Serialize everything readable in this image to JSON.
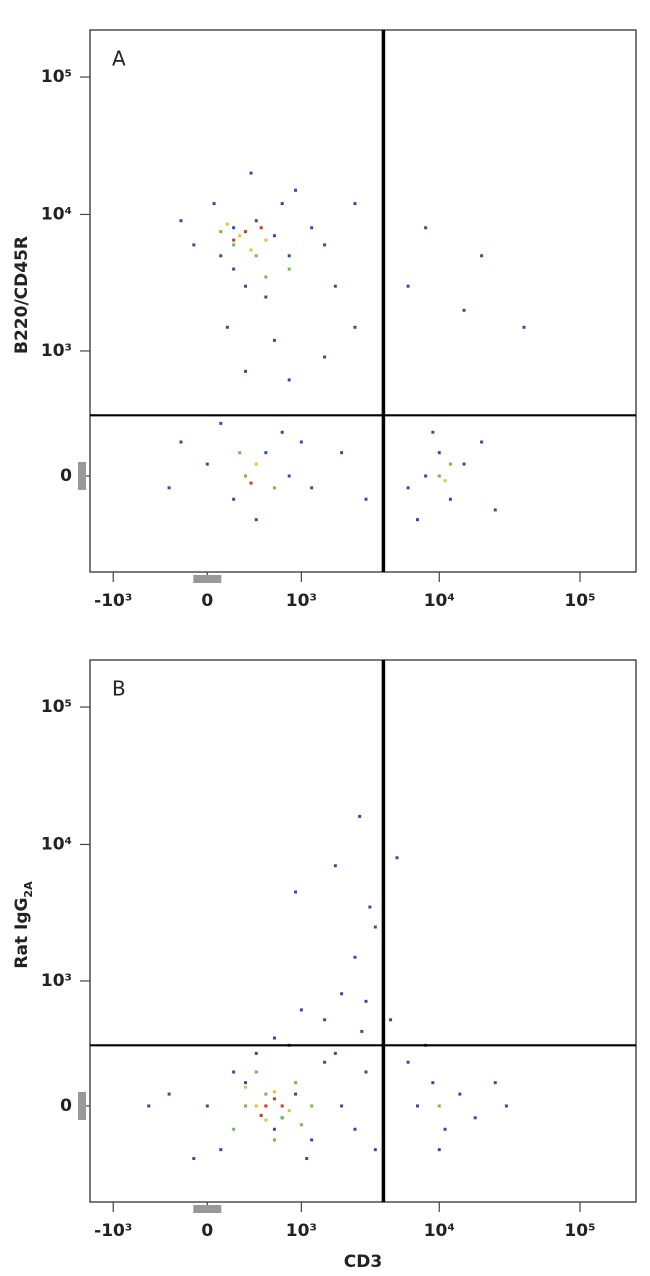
{
  "chart_data": [
    {
      "type": "scatter",
      "label": "A",
      "ylabel": {
        "text": "B220/CD45R"
      },
      "xlim": [
        -1500,
        250000
      ],
      "ylim": [
        -600,
        220000
      ],
      "xticks": [
        {
          "value": -1000,
          "label": "-10³"
        },
        0,
        {
          "value": 1000,
          "label": "10³"
        },
        {
          "value": 10000,
          "label": "10⁴"
        },
        {
          "value": 100000,
          "label": "10⁵"
        }
      ],
      "yticks": [
        0,
        {
          "value": 1000,
          "label": "10³"
        },
        {
          "value": 10000,
          "label": "10⁴"
        },
        {
          "value": 100000,
          "label": "10⁵"
        }
      ],
      "gate": {
        "x": 4000,
        "y": 300
      },
      "series": [
        {
          "color": "#2d4fa1",
          "x": [
            100,
            200,
            400,
            600,
            -100,
            800,
            1200,
            300,
            500,
            50,
            700,
            1500,
            200,
            -200,
            900,
            350,
            1800,
            2500,
            150,
            600,
            300,
            800,
            1500,
            2500,
            40000,
            20000,
            8000,
            15000,
            6000,
            0,
            200,
            500,
            800,
            -200,
            1200,
            100,
            400,
            700,
            2000,
            3000,
            -300,
            1000,
            8000,
            10000,
            12000,
            15000,
            6000,
            20000,
            9000,
            25000,
            7000
          ],
          "y": [
            5000,
            8000,
            9000,
            7000,
            6000,
            5000,
            8000,
            3000,
            2500,
            12000,
            12000,
            6000,
            4000,
            9000,
            15000,
            20000,
            3000,
            12000,
            1500,
            1200,
            700,
            600,
            900,
            1500,
            1500,
            5000,
            8000,
            2000,
            3000,
            50,
            -100,
            100,
            0,
            150,
            -50,
            250,
            -200,
            200,
            100,
            -100,
            -50,
            150,
            0,
            100,
            -100,
            50,
            -50,
            150,
            200,
            -150,
            -200
          ]
        },
        {
          "color": "#6cbf4a",
          "x": [
            200,
            400,
            100,
            500,
            300,
            600,
            250,
            10000,
            12000,
            800
          ],
          "y": [
            6000,
            5000,
            7500,
            3500,
            0,
            -50,
            100,
            0,
            50,
            4000
          ]
        },
        {
          "color": "#e8c12a",
          "x": [
            250,
            350,
            150,
            400,
            11000,
            500
          ],
          "y": [
            7000,
            5500,
            8500,
            50,
            -20,
            6500
          ]
        },
        {
          "color": "#d9341e",
          "x": [
            300,
            200,
            350,
            450
          ],
          "y": [
            7500,
            6500,
            -30,
            8000
          ]
        }
      ]
    },
    {
      "type": "scatter",
      "label": "B",
      "xlabel": "CD3",
      "ylabel": {
        "text": "Rat IgG",
        "sub": "2A"
      },
      "xlim": [
        -1500,
        250000
      ],
      "ylim": [
        -600,
        220000
      ],
      "xticks": [
        {
          "value": -1000,
          "label": "-10³"
        },
        0,
        {
          "value": 1000,
          "label": "10³"
        },
        {
          "value": 10000,
          "label": "10⁴"
        },
        {
          "value": 100000,
          "label": "10⁵"
        }
      ],
      "yticks": [
        0,
        {
          "value": 1000,
          "label": "10³"
        },
        {
          "value": 10000,
          "label": "10⁴"
        },
        {
          "value": 100000,
          "label": "10⁵"
        }
      ],
      "gate": {
        "x": 4000,
        "y": 300
      },
      "series": [
        {
          "color": "#2d4fa1",
          "x": [
            0,
            300,
            600,
            900,
            1200,
            -300,
            100,
            1500,
            2000,
            2500,
            3000,
            -500,
            400,
            800,
            1100,
            200,
            700,
            3500,
            -100,
            1800,
            1500,
            2000,
            2500,
            3000,
            3500,
            2800,
            4500,
            1000,
            3200,
            2700,
            1800,
            900,
            5000,
            600,
            7000,
            9000,
            11000,
            14000,
            18000,
            25000,
            6000,
            10000,
            30000,
            8000
          ],
          "y": [
            0,
            100,
            -100,
            50,
            -150,
            50,
            -200,
            200,
            0,
            -100,
            150,
            0,
            250,
            300,
            -250,
            150,
            -50,
            -200,
            -250,
            250,
            500,
            800,
            1500,
            700,
            2500,
            400,
            500,
            600,
            3500,
            16000,
            7000,
            4500,
            8000,
            350,
            0,
            100,
            -100,
            50,
            -50,
            100,
            200,
            -200,
            0,
            300
          ]
        },
        {
          "color": "#6cbf4a",
          "x": [
            300,
            500,
            700,
            200,
            900,
            1200,
            400,
            10000,
            600,
            1000
          ],
          "y": [
            0,
            50,
            -50,
            -100,
            100,
            0,
            150,
            0,
            -150,
            -80
          ]
        },
        {
          "color": "#e8c12a",
          "x": [
            400,
            600,
            500,
            300,
            800
          ],
          "y": [
            0,
            60,
            -60,
            80,
            -20
          ]
        },
        {
          "color": "#d9341e",
          "x": [
            500,
            600,
            450,
            700
          ],
          "y": [
            0,
            30,
            -40,
            0
          ]
        }
      ]
    }
  ]
}
